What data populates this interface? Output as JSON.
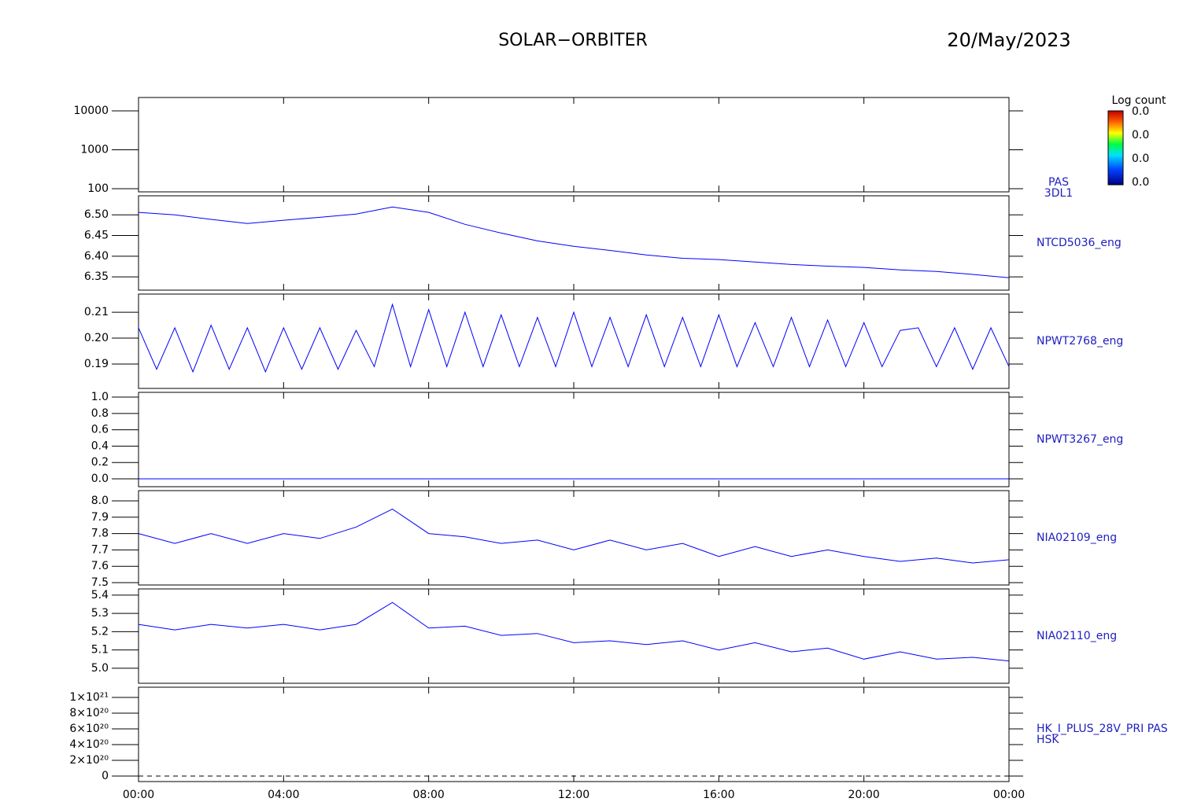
{
  "header": {
    "title": "SOLAR−ORBITER",
    "date": "20/May/2023"
  },
  "chart_data": [
    {
      "type": "spectrogram",
      "label": [
        "PAS",
        "3DL1"
      ],
      "log": true,
      "ylim": [
        83,
        22000
      ],
      "yticks": [
        100,
        1000,
        10000
      ],
      "colorbar": {
        "title": "Log count",
        "ticks": [
          "0.0",
          "0.0",
          "0.0",
          "0.0"
        ]
      }
    },
    {
      "type": "line",
      "label": [
        "NTCD5036_eng"
      ],
      "color": "#0000ff",
      "ylim": [
        6.318,
        6.546
      ],
      "yticks": [
        6.35,
        {
          "value": 6.4,
          "label": "6.40"
        },
        6.45,
        {
          "value": 6.5,
          "label": "6.50"
        }
      ],
      "x": [
        0,
        1,
        2,
        3,
        4,
        5,
        6,
        7,
        8,
        9,
        10,
        11,
        12,
        13,
        14,
        15,
        16,
        17,
        18,
        19,
        20,
        21,
        22,
        23,
        24
      ],
      "values": [
        6.506,
        6.5,
        6.489,
        6.479,
        6.487,
        6.494,
        6.502,
        6.519,
        6.506,
        6.477,
        6.456,
        6.437,
        6.424,
        6.414,
        6.403,
        6.395,
        6.392,
        6.386,
        6.38,
        6.376,
        6.373,
        6.367,
        6.363,
        6.356,
        6.348
      ]
    },
    {
      "type": "line",
      "label": [
        "NPWT2768_eng"
      ],
      "color": "#0000ff",
      "ylim": [
        0.1806,
        0.217
      ],
      "yticks": [
        0.19,
        {
          "value": 0.2,
          "label": "0.20"
        },
        0.21
      ],
      "x": [
        0,
        0.5,
        1,
        1.5,
        2,
        2.5,
        3,
        3.5,
        4,
        4.5,
        5,
        5.5,
        6,
        6.5,
        7,
        7.5,
        8,
        8.5,
        9,
        9.5,
        10,
        10.5,
        11,
        11.5,
        12,
        12.5,
        13,
        13.5,
        14,
        14.5,
        15,
        15.5,
        16,
        16.5,
        17,
        17.5,
        18,
        18.5,
        19,
        19.5,
        20,
        20.5,
        21,
        21.5,
        22,
        22.5,
        23,
        23.5,
        24
      ],
      "values": [
        0.204,
        0.188,
        0.204,
        0.187,
        0.205,
        0.188,
        0.204,
        0.187,
        0.204,
        0.188,
        0.204,
        0.188,
        0.203,
        0.189,
        0.213,
        0.189,
        0.211,
        0.189,
        0.21,
        0.189,
        0.209,
        0.189,
        0.208,
        0.189,
        0.21,
        0.189,
        0.208,
        0.189,
        0.209,
        0.189,
        0.208,
        0.189,
        0.209,
        0.189,
        0.206,
        0.189,
        0.208,
        0.189,
        0.207,
        0.189,
        0.206,
        0.189,
        0.203,
        0.204,
        0.189,
        0.204,
        0.188,
        0.204,
        0.189
      ]
    },
    {
      "type": "line",
      "label": [
        "NPWT3267_eng"
      ],
      "color": "#0000ff",
      "ylim": [
        -0.096,
        1.058
      ],
      "yticks": [
        {
          "value": 0,
          "label": "0.0"
        },
        0.2,
        0.4,
        0.6,
        0.8,
        {
          "value": 1,
          "label": "1.0"
        }
      ],
      "x": [
        0,
        24
      ],
      "values": [
        0,
        0
      ]
    },
    {
      "type": "line",
      "label": [
        "NIA02109_eng"
      ],
      "color": "#0000ff",
      "ylim": [
        7.4856,
        8.0625
      ],
      "yticks": [
        7.5,
        7.6,
        7.7,
        7.8,
        7.9,
        {
          "value": 8,
          "label": "8.0"
        }
      ],
      "x": [
        0,
        1,
        2,
        3,
        4,
        5,
        6,
        7,
        8,
        9,
        10,
        11,
        12,
        13,
        14,
        15,
        16,
        17,
        18,
        19,
        20,
        21,
        22,
        23,
        24
      ],
      "values": [
        7.8,
        7.74,
        7.8,
        7.74,
        7.8,
        7.77,
        7.84,
        7.95,
        7.8,
        7.78,
        7.74,
        7.76,
        7.7,
        7.76,
        7.7,
        7.74,
        7.66,
        7.72,
        7.66,
        7.7,
        7.66,
        7.63,
        7.65,
        7.62,
        7.64
      ]
    },
    {
      "type": "line",
      "label": [
        "NIA02110_eng"
      ],
      "color": "#0000ff",
      "ylim": [
        4.918,
        5.434
      ],
      "yticks": [
        {
          "value": 5,
          "label": "5.0"
        },
        5.1,
        5.2,
        5.3,
        5.4
      ],
      "x": [
        0,
        1,
        2,
        3,
        4,
        5,
        6,
        7,
        8,
        9,
        10,
        11,
        12,
        13,
        14,
        15,
        16,
        17,
        18,
        19,
        20,
        21,
        22,
        23,
        24
      ],
      "values": [
        5.24,
        5.21,
        5.24,
        5.22,
        5.24,
        5.21,
        5.24,
        5.36,
        5.22,
        5.23,
        5.18,
        5.19,
        5.14,
        5.15,
        5.13,
        5.15,
        5.1,
        5.14,
        5.09,
        5.11,
        5.05,
        5.09,
        5.05,
        5.06,
        5.04
      ]
    },
    {
      "type": "line",
      "label": [
        "HK_I_PLUS_28V_PRI PAS",
        "HSK"
      ],
      "color": "#000000",
      "dashed": true,
      "ylim": [
        -7e+19,
        1.13e+21
      ],
      "yticks": [
        0,
        {
          "value": 2e+20,
          "label": "2×10²⁰"
        },
        {
          "value": 4e+20,
          "label": "4×10²⁰"
        },
        {
          "value": 6e+20,
          "label": "6×10²⁰"
        },
        {
          "value": 8e+20,
          "label": "8×10²⁰"
        },
        {
          "value": 1e+21,
          "label": "1×10²¹"
        }
      ],
      "x": [
        0,
        24
      ],
      "values": [
        0,
        0
      ],
      "xlim": [
        0,
        24
      ],
      "xticks": [
        {
          "value": 0,
          "label": "00:00"
        },
        {
          "value": 4,
          "label": "04:00"
        },
        {
          "value": 8,
          "label": "08:00"
        },
        {
          "value": 12,
          "label": "12:00"
        },
        {
          "value": 16,
          "label": "16:00"
        },
        {
          "value": 20,
          "label": "20:00"
        },
        {
          "value": 24,
          "label": "00:00"
        }
      ]
    }
  ]
}
